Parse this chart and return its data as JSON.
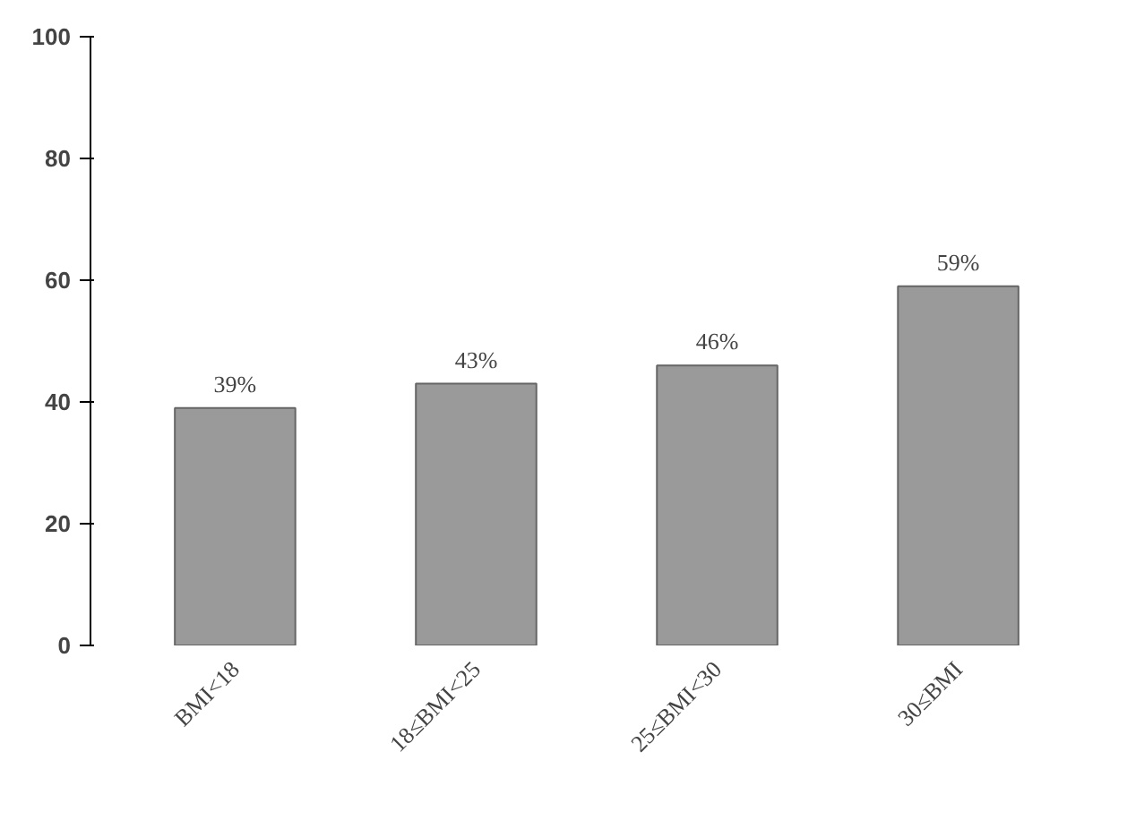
{
  "chart_data": {
    "type": "bar",
    "categories": [
      "BMI<18",
      "18≤BMI<25",
      "25≤BMI<30",
      "30≤BMI"
    ],
    "values": [
      39,
      43,
      46,
      59
    ],
    "value_labels": [
      "39%",
      "43%",
      "46%",
      "59%"
    ],
    "color": "#9a9a9a",
    "ylim": [
      0,
      100
    ],
    "yticks": [
      0,
      20,
      40,
      60,
      80,
      100
    ],
    "grid": false
  }
}
